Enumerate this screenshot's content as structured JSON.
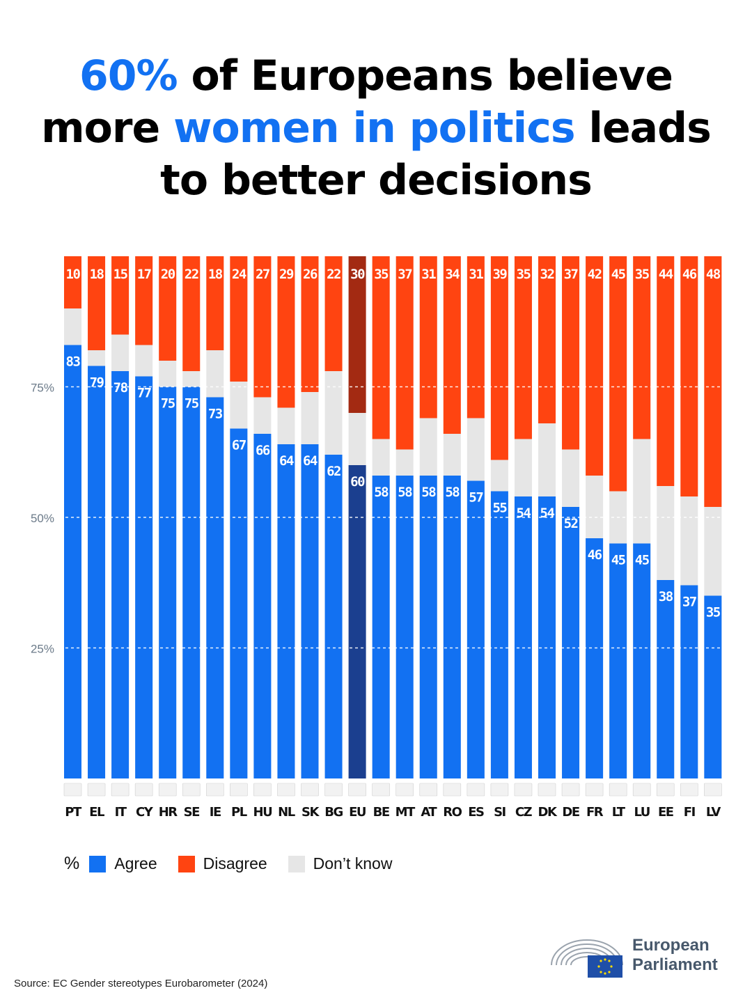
{
  "title": {
    "line1_hl": "60%",
    "line1_rest": " of Europeans believe",
    "line2_start": "more ",
    "line2_hl": "women in politics",
    "line2_end": " leads",
    "line3": "to better decisions"
  },
  "colors": {
    "agree": "#1271f2",
    "disagree": "#ff4411",
    "dont_know": "#e6e6e6",
    "eu_agree": "#1b3f8f",
    "eu_disagree": "#a32a12",
    "title_highlight": "#1271f2"
  },
  "chart_data": {
    "type": "bar",
    "stacked": true,
    "ylim": [
      0,
      100
    ],
    "yticks": [
      25,
      50,
      75
    ],
    "ytick_labels": [
      "25%",
      "50%",
      "75%"
    ],
    "grid": "dashed white horizontal lines at ticks",
    "categories": [
      "PT",
      "EL",
      "IT",
      "CY",
      "HR",
      "SE",
      "IE",
      "PL",
      "HU",
      "NL",
      "SK",
      "BG",
      "EU",
      "BE",
      "MT",
      "AT",
      "RO",
      "ES",
      "SI",
      "CZ",
      "DK",
      "DE",
      "FR",
      "LT",
      "LU",
      "EE",
      "FI",
      "LV"
    ],
    "series": [
      {
        "name": "Agree",
        "values": [
          83,
          79,
          78,
          77,
          75,
          75,
          73,
          67,
          66,
          64,
          64,
          62,
          60,
          58,
          58,
          58,
          58,
          57,
          55,
          54,
          54,
          52,
          46,
          45,
          45,
          38,
          37,
          35
        ]
      },
      {
        "name": "Disagree",
        "values": [
          10,
          18,
          15,
          17,
          20,
          22,
          18,
          24,
          27,
          29,
          26,
          22,
          30,
          35,
          37,
          31,
          34,
          31,
          39,
          35,
          32,
          37,
          42,
          45,
          35,
          44,
          46,
          48
        ]
      }
    ],
    "legend_placement": "bottom-left"
  },
  "legend": {
    "unit": "%",
    "agree": "Agree",
    "disagree": "Disagree",
    "dont_know": "Don’t know"
  },
  "source": "Source: EC Gender stereotypes Eurobarometer (2024)",
  "logo": {
    "line1": "European",
    "line2": "Parliament"
  }
}
